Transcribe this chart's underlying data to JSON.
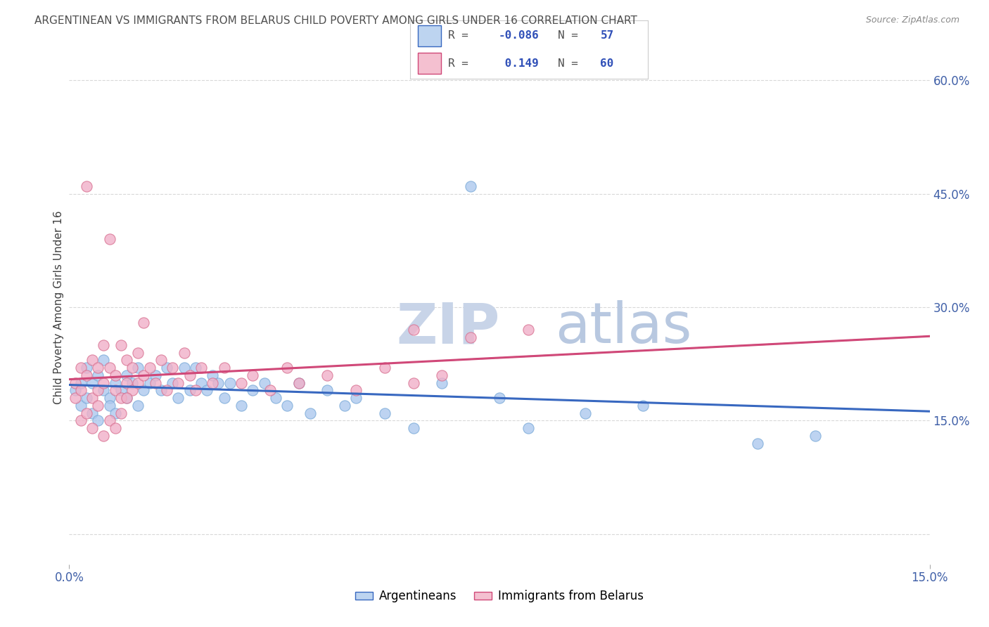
{
  "title": "ARGENTINEAN VS IMMIGRANTS FROM BELARUS CHILD POVERTY AMONG GIRLS UNDER 16 CORRELATION CHART",
  "source": "Source: ZipAtlas.com",
  "ylabel": "Child Poverty Among Girls Under 16",
  "yticks": [
    0.0,
    0.15,
    0.3,
    0.45,
    0.6
  ],
  "ytick_labels": [
    "",
    "15.0%",
    "30.0%",
    "45.0%",
    "60.0%"
  ],
  "xmin": 0.0,
  "xmax": 0.15,
  "ymin": -0.04,
  "ymax": 0.64,
  "watermark_zip": "ZIP",
  "watermark_atlas": "atlas",
  "series": [
    {
      "name": "Argentineans",
      "R": -0.086,
      "N": 57,
      "color": "#adc8ee",
      "edge_color": "#7aaad8",
      "x": [
        0.001,
        0.002,
        0.002,
        0.003,
        0.003,
        0.004,
        0.004,
        0.005,
        0.005,
        0.006,
        0.006,
        0.007,
        0.007,
        0.008,
        0.008,
        0.009,
        0.01,
        0.01,
        0.011,
        0.012,
        0.012,
        0.013,
        0.014,
        0.015,
        0.016,
        0.017,
        0.018,
        0.019,
        0.02,
        0.021,
        0.022,
        0.023,
        0.024,
        0.025,
        0.026,
        0.027,
        0.028,
        0.03,
        0.032,
        0.034,
        0.036,
        0.038,
        0.04,
        0.042,
        0.045,
        0.048,
        0.05,
        0.055,
        0.06,
        0.065,
        0.07,
        0.075,
        0.08,
        0.09,
        0.1,
        0.12,
        0.13
      ],
      "y": [
        0.19,
        0.17,
        0.2,
        0.18,
        0.22,
        0.16,
        0.2,
        0.21,
        0.15,
        0.19,
        0.23,
        0.18,
        0.17,
        0.2,
        0.16,
        0.19,
        0.21,
        0.18,
        0.2,
        0.17,
        0.22,
        0.19,
        0.2,
        0.21,
        0.19,
        0.22,
        0.2,
        0.18,
        0.22,
        0.19,
        0.22,
        0.2,
        0.19,
        0.21,
        0.2,
        0.18,
        0.2,
        0.17,
        0.19,
        0.2,
        0.18,
        0.17,
        0.2,
        0.16,
        0.19,
        0.17,
        0.18,
        0.16,
        0.14,
        0.2,
        0.46,
        0.18,
        0.14,
        0.16,
        0.17,
        0.12,
        0.13
      ]
    },
    {
      "name": "Immigrants from Belarus",
      "R": 0.149,
      "N": 60,
      "color": "#f0b0c8",
      "edge_color": "#d87090",
      "x": [
        0.001,
        0.001,
        0.002,
        0.002,
        0.003,
        0.003,
        0.004,
        0.004,
        0.005,
        0.005,
        0.006,
        0.006,
        0.007,
        0.007,
        0.008,
        0.008,
        0.009,
        0.009,
        0.01,
        0.01,
        0.011,
        0.011,
        0.012,
        0.012,
        0.013,
        0.013,
        0.014,
        0.015,
        0.016,
        0.017,
        0.018,
        0.019,
        0.02,
        0.021,
        0.022,
        0.023,
        0.025,
        0.027,
        0.03,
        0.032,
        0.035,
        0.038,
        0.04,
        0.045,
        0.05,
        0.055,
        0.06,
        0.065,
        0.07,
        0.08,
        0.002,
        0.003,
        0.004,
        0.005,
        0.006,
        0.007,
        0.008,
        0.009,
        0.01,
        0.06
      ],
      "y": [
        0.2,
        0.18,
        0.22,
        0.19,
        0.46,
        0.21,
        0.23,
        0.18,
        0.22,
        0.19,
        0.25,
        0.2,
        0.39,
        0.22,
        0.21,
        0.19,
        0.25,
        0.18,
        0.23,
        0.2,
        0.22,
        0.19,
        0.24,
        0.2,
        0.28,
        0.21,
        0.22,
        0.2,
        0.23,
        0.19,
        0.22,
        0.2,
        0.24,
        0.21,
        0.19,
        0.22,
        0.2,
        0.22,
        0.2,
        0.21,
        0.19,
        0.22,
        0.2,
        0.21,
        0.19,
        0.22,
        0.2,
        0.21,
        0.26,
        0.27,
        0.15,
        0.16,
        0.14,
        0.17,
        0.13,
        0.15,
        0.14,
        0.16,
        0.18,
        0.27
      ]
    }
  ],
  "trend_colors": [
    "#3868c0",
    "#d04878"
  ],
  "trend_dash_color": "#c8a0b8",
  "grid_color": "#d8d8d8",
  "background_color": "#ffffff",
  "legend_box_color_1": "#bdd4f0",
  "legend_box_color_2": "#f4c0d0",
  "title_color": "#505050",
  "axis_label_color": "#4060a8",
  "watermark_zip_color": "#c8d4e8",
  "watermark_atlas_color": "#b8c8e0"
}
